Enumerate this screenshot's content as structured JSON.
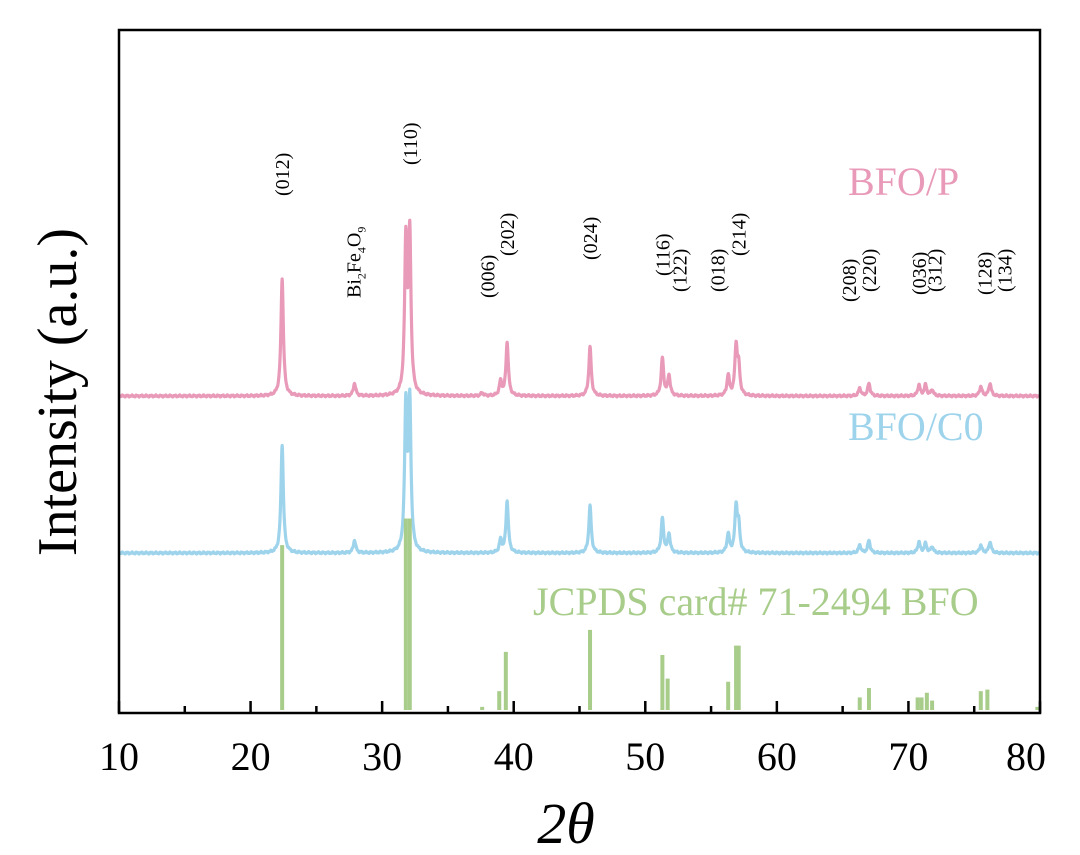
{
  "chart_data": {
    "type": "line",
    "title": "",
    "xlabel": "2θ",
    "ylabel": "Intensity (a.u.)",
    "xlim": [
      10,
      80
    ],
    "xticks": [
      "10",
      "20",
      "30",
      "40",
      "50",
      "60",
      "70",
      "80"
    ],
    "xtick_values": [
      10,
      20,
      30,
      40,
      50,
      60,
      70,
      80
    ],
    "grid": false,
    "series": [
      {
        "name": "BFO/P",
        "color": "#e89ab8",
        "baseline": 2.0,
        "scale": 1.0,
        "peaks": [
          {
            "x": 22.4,
            "h": 0.75
          },
          {
            "x": 27.9,
            "h": 0.08
          },
          {
            "x": 31.8,
            "h": 0.96
          },
          {
            "x": 32.1,
            "h": 1.0
          },
          {
            "x": 37.6,
            "h": 0.02
          },
          {
            "x": 39.0,
            "h": 0.09
          },
          {
            "x": 39.5,
            "h": 0.34
          },
          {
            "x": 45.8,
            "h": 0.31
          },
          {
            "x": 51.3,
            "h": 0.24
          },
          {
            "x": 51.8,
            "h": 0.13
          },
          {
            "x": 56.3,
            "h": 0.13
          },
          {
            "x": 56.9,
            "h": 0.31
          },
          {
            "x": 57.1,
            "h": 0.17
          },
          {
            "x": 66.3,
            "h": 0.05
          },
          {
            "x": 67.0,
            "h": 0.08
          },
          {
            "x": 70.8,
            "h": 0.07
          },
          {
            "x": 71.3,
            "h": 0.07
          },
          {
            "x": 71.8,
            "h": 0.04
          },
          {
            "x": 75.5,
            "h": 0.06
          },
          {
            "x": 76.2,
            "h": 0.08
          }
        ]
      },
      {
        "name": "BFO/C0",
        "color": "#9ed3ec",
        "baseline": 1.0,
        "scale": 1.0,
        "peaks": [
          {
            "x": 22.4,
            "h": 0.69
          },
          {
            "x": 27.9,
            "h": 0.08
          },
          {
            "x": 31.8,
            "h": 0.91
          },
          {
            "x": 32.1,
            "h": 0.93
          },
          {
            "x": 39.0,
            "h": 0.08
          },
          {
            "x": 39.5,
            "h": 0.33
          },
          {
            "x": 45.8,
            "h": 0.3
          },
          {
            "x": 51.3,
            "h": 0.22
          },
          {
            "x": 51.8,
            "h": 0.12
          },
          {
            "x": 56.3,
            "h": 0.12
          },
          {
            "x": 56.9,
            "h": 0.29
          },
          {
            "x": 57.1,
            "h": 0.16
          },
          {
            "x": 66.3,
            "h": 0.05
          },
          {
            "x": 67.0,
            "h": 0.08
          },
          {
            "x": 70.8,
            "h": 0.07
          },
          {
            "x": 71.3,
            "h": 0.06
          },
          {
            "x": 71.8,
            "h": 0.04
          },
          {
            "x": 75.5,
            "h": 0.05
          },
          {
            "x": 76.2,
            "h": 0.07
          }
        ]
      }
    ],
    "reference": {
      "name": "JCPDS card# 71-2494 BFO",
      "color": "#a8cc8a",
      "baseline": 0.0,
      "bars": [
        {
          "x": 22.4,
          "h": 1.05
        },
        {
          "x": 31.8,
          "h": 1.22
        },
        {
          "x": 32.1,
          "h": 1.22
        },
        {
          "x": 37.6,
          "h": 0.02
        },
        {
          "x": 38.9,
          "h": 0.12
        },
        {
          "x": 39.4,
          "h": 0.37
        },
        {
          "x": 45.8,
          "h": 0.51
        },
        {
          "x": 51.3,
          "h": 0.35
        },
        {
          "x": 51.7,
          "h": 0.2
        },
        {
          "x": 56.3,
          "h": 0.18
        },
        {
          "x": 56.9,
          "h": 0.41
        },
        {
          "x": 57.1,
          "h": 0.41
        },
        {
          "x": 66.3,
          "h": 0.08
        },
        {
          "x": 67.0,
          "h": 0.14
        },
        {
          "x": 70.7,
          "h": 0.08
        },
        {
          "x": 71.0,
          "h": 0.08
        },
        {
          "x": 71.4,
          "h": 0.11
        },
        {
          "x": 71.8,
          "h": 0.06
        },
        {
          "x": 75.5,
          "h": 0.12
        },
        {
          "x": 76.0,
          "h": 0.13
        },
        {
          "x": 79.8,
          "h": 0.02
        }
      ]
    },
    "annotations": [
      {
        "label": "(012)",
        "x": 22.4
      },
      {
        "label": "(110)",
        "x": 32.1
      },
      {
        "label": "(006)",
        "x": 38.0
      },
      {
        "label": "(202)",
        "x": 39.5
      },
      {
        "label": "(024)",
        "x": 45.8
      },
      {
        "label": "(116)",
        "x": 51.3
      },
      {
        "label": "(122)",
        "x": 52.6
      },
      {
        "label": "(018)",
        "x": 55.5
      },
      {
        "label": "(214)",
        "x": 57.1
      },
      {
        "label": "(208)",
        "x": 65.5
      },
      {
        "label": "(220)",
        "x": 67.0
      },
      {
        "label": "(036)",
        "x": 70.8
      },
      {
        "label": "(312)",
        "x": 72.0
      },
      {
        "label": "(128)",
        "x": 75.8
      },
      {
        "label": "(134)",
        "x": 77.3
      }
    ],
    "impurity_annotation": {
      "label": "Bi",
      "sub1": "2",
      "mid": "Fe",
      "sub2": "4",
      "end": "O",
      "sub3": "9",
      "x": 27.9
    }
  }
}
